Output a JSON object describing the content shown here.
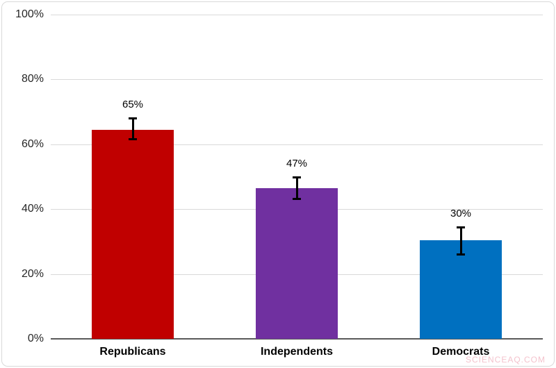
{
  "watermark": {
    "text": "SCIENCEAQ.COM",
    "color": "#f4c3cd"
  },
  "chart_data": {
    "type": "bar",
    "title": "",
    "xlabel": "",
    "ylabel": "",
    "categories": [
      "Republicans",
      "Independents",
      "Democrats"
    ],
    "values": [
      64.5,
      46.5,
      30.5
    ],
    "data_labels": [
      "65%",
      "47%",
      "30%"
    ],
    "error_low": [
      61.5,
      43.0,
      26.0
    ],
    "error_high": [
      68.0,
      50.0,
      34.5
    ],
    "bar_colors": [
      "#c00000",
      "#7030a0",
      "#0070c0"
    ],
    "ylim": [
      0,
      100
    ],
    "yticks": [
      0,
      20,
      40,
      60,
      80,
      100
    ],
    "ytick_labels": [
      "0%",
      "20%",
      "40%",
      "60%",
      "80%",
      "100%"
    ],
    "grid": "horizontal",
    "gridline_color": "#d9d9d9",
    "axis_line_color": "#595959",
    "error_bar_color": "#000000",
    "label_color": "#000000",
    "legend_position": "none"
  }
}
